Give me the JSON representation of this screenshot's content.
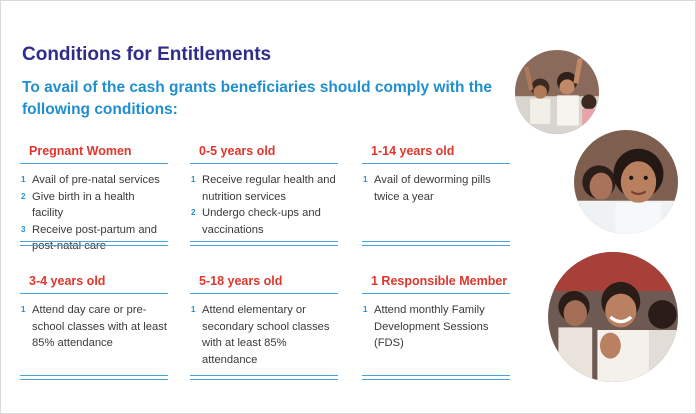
{
  "title": "Conditions for Entitlements",
  "subtitle": "To avail of the cash grants beneficiaries should comply with the following conditions:",
  "cards": [
    {
      "title": "Pregnant Women",
      "items": [
        "Avail of pre-natal services",
        "Give birth in a health facility",
        "Receive post-partum and post-natal care"
      ]
    },
    {
      "title": "0-5 years old",
      "items": [
        "Receive regular health and nutrition services",
        "Undergo check-ups and vaccinations"
      ]
    },
    {
      "title": "1-14 years old",
      "items": [
        "Avail of deworming pills twice a year"
      ]
    },
    {
      "title": "3-4 years old",
      "items": [
        "Attend day care or pre-school classes with at least 85% attendance"
      ]
    },
    {
      "title": "5-18 years old",
      "items": [
        "Attend elementary or secondary school classes with at least 85% attendance"
      ]
    },
    {
      "title": "1 Responsible Member",
      "items": [
        "Attend monthly Family Development Sessions (FDS)"
      ]
    }
  ],
  "item_numbers": [
    "1",
    "2",
    "3"
  ],
  "colors": {
    "title": "#2f2d8c",
    "subtitle": "#1f8fd0",
    "card_title": "#e0362c",
    "rule": "#4aa3d8",
    "body_text": "#3a3a3a"
  }
}
